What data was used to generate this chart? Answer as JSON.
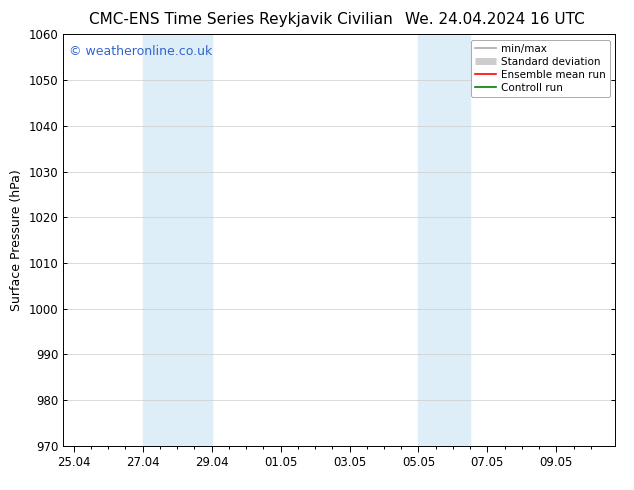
{
  "title_left": "CMC-ENS Time Series Reykjavik Civilian",
  "title_right": "We. 24.04.2024 16 UTC",
  "ylabel": "Surface Pressure (hPa)",
  "ylim": [
    970,
    1060
  ],
  "yticks": [
    970,
    980,
    990,
    1000,
    1010,
    1020,
    1030,
    1040,
    1050,
    1060
  ],
  "x_tick_labels": [
    "25.04",
    "27.04",
    "29.04",
    "01.05",
    "03.05",
    "05.05",
    "07.05",
    "09.05"
  ],
  "x_tick_positions": [
    0,
    2,
    4,
    6,
    8,
    10,
    12,
    14
  ],
  "xlim": [
    -0.3,
    15.7
  ],
  "shaded_bands": [
    {
      "x_start": 2,
      "x_end": 4,
      "color": "#ddeef8"
    },
    {
      "x_start": 10,
      "x_end": 11.5,
      "color": "#ddeef8"
    }
  ],
  "watermark_text": "© weatheronline.co.uk",
  "watermark_color": "#3366cc",
  "watermark_fontsize": 9,
  "legend_items": [
    {
      "label": "min/max",
      "color": "#aaaaaa",
      "linestyle": "-",
      "linewidth": 1.2
    },
    {
      "label": "Standard deviation",
      "color": "#cccccc",
      "linestyle": "-",
      "linewidth": 5
    },
    {
      "label": "Ensemble mean run",
      "color": "#ff0000",
      "linestyle": "-",
      "linewidth": 1.2
    },
    {
      "label": "Controll run",
      "color": "#008000",
      "linestyle": "-",
      "linewidth": 1.2
    }
  ],
  "background_color": "#ffffff",
  "plot_bg_color": "#ffffff",
  "grid_color": "#cccccc",
  "title_fontsize": 11,
  "axis_label_fontsize": 9,
  "tick_fontsize": 8.5
}
